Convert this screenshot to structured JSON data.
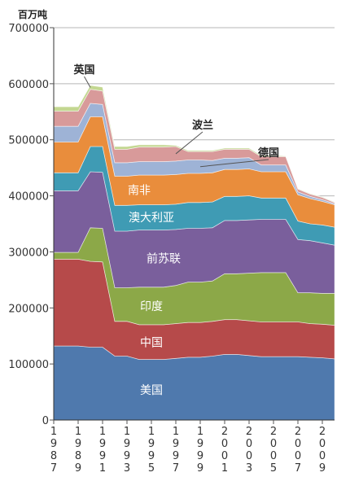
{
  "chart_data": {
    "type": "area",
    "stacked": true,
    "title": "",
    "unit_label": "百万吨",
    "xlabel": "",
    "ylabel": "",
    "ylim": [
      0,
      700000
    ],
    "yticks": [
      "0",
      "100000",
      "200000",
      "300000",
      "400000",
      "500000",
      "600000",
      "700000"
    ],
    "x": [
      1987,
      1988,
      1989,
      1990,
      1991,
      1992,
      1993,
      1994,
      1995,
      1996,
      1997,
      1998,
      1999,
      2000,
      2001,
      2002,
      2003,
      2004,
      2005,
      2006,
      2007,
      2008,
      2009,
      2010
    ],
    "xtick_labels": [
      "1987",
      "1989",
      "1991",
      "1993",
      "1995",
      "1997",
      "1999",
      "2001",
      "2003",
      "2005",
      "2007",
      "2009"
    ],
    "grid": true,
    "series": [
      {
        "name": "美国",
        "color": "#4f79ad",
        "values": [
          132000,
          132000,
          132000,
          130000,
          130000,
          114000,
          114000,
          108000,
          108000,
          108000,
          110000,
          112000,
          112000,
          114000,
          117000,
          117000,
          115000,
          113000,
          113000,
          113000,
          113000,
          112000,
          111000,
          109000
        ]
      },
      {
        "name": "中国",
        "color": "#b64a4a",
        "values": [
          155000,
          155000,
          155000,
          153000,
          152000,
          62000,
          62000,
          62000,
          62000,
          62000,
          62000,
          62000,
          62000,
          62000,
          62000,
          62000,
          62000,
          62000,
          62000,
          62000,
          62000,
          60000,
          60000,
          60000
        ]
      },
      {
        "name": "印度",
        "color": "#8ca848",
        "values": [
          12000,
          12000,
          12000,
          60000,
          60000,
          60000,
          60000,
          67000,
          67000,
          67000,
          68000,
          72000,
          72000,
          72000,
          82000,
          82000,
          85000,
          88000,
          88000,
          88000,
          52000,
          55000,
          55000,
          57000
        ]
      },
      {
        "name": "前苏联",
        "color": "#7a5f9c",
        "values": [
          110000,
          110000,
          110000,
          100000,
          100000,
          101000,
          101000,
          102000,
          102000,
          102000,
          100000,
          96000,
          96000,
          95000,
          95000,
          95000,
          95000,
          95000,
          95000,
          95000,
          95000,
          93000,
          90000,
          86000
        ]
      },
      {
        "name": "澳大利亚",
        "color": "#3f9bb4",
        "values": [
          32000,
          32000,
          32000,
          45000,
          46000,
          46000,
          46000,
          45000,
          45000,
          45000,
          45000,
          46000,
          46000,
          46000,
          43000,
          43000,
          43000,
          38000,
          38000,
          38000,
          33000,
          30000,
          32000,
          32000
        ]
      },
      {
        "name": "南非",
        "color": "#e98d3c",
        "values": [
          55000,
          55000,
          55000,
          53000,
          53000,
          52000,
          52000,
          53000,
          53000,
          53000,
          53000,
          52000,
          52000,
          52000,
          48000,
          48000,
          48000,
          47000,
          47000,
          47000,
          47000,
          45000,
          42000,
          40000
        ]
      },
      {
        "name": "德国",
        "color": "#9eb3d6",
        "values": [
          28000,
          28000,
          28000,
          24000,
          22000,
          24000,
          24000,
          24000,
          24000,
          24000,
          24000,
          24000,
          24000,
          22000,
          20000,
          20000,
          20000,
          12000,
          12000,
          12000,
          5000,
          4000,
          3000,
          2000
        ]
      },
      {
        "name": "波兰",
        "color": "#d89a9a",
        "values": [
          27000,
          27000,
          27000,
          25000,
          24000,
          24000,
          24000,
          26000,
          26000,
          26000,
          26000,
          15000,
          15000,
          16000,
          16000,
          16000,
          15000,
          15000,
          15000,
          15000,
          5000,
          4000,
          4000,
          2000
        ]
      },
      {
        "name": "英国",
        "color": "#c3d791",
        "values": [
          8000,
          8000,
          8000,
          7000,
          7000,
          5000,
          5000,
          4000,
          4000,
          4000,
          2000,
          2000,
          2000,
          2000,
          2000,
          2000,
          2000,
          2000,
          2000,
          1000,
          1000,
          1000,
          1000,
          1000
        ]
      }
    ]
  }
}
